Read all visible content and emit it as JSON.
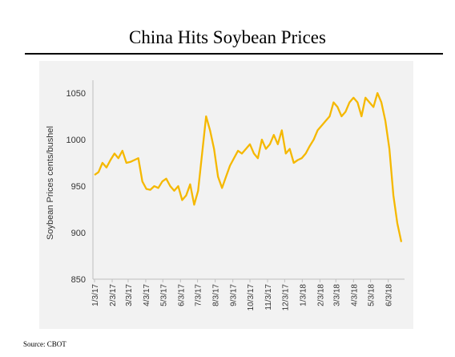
{
  "title": "China Hits Soybean Prices",
  "source": "Source: CBOT",
  "colors": {
    "line": "#f5b800",
    "plot_background": "#f2f2f2",
    "axis": "#bfbfbf"
  },
  "chart_data": {
    "type": "line",
    "title": "China Hits Soybean Prices",
    "xlabel": "",
    "ylabel": "Soybean Prices cents/bushel",
    "ylim": [
      850,
      1070
    ],
    "y_ticks": [
      850,
      900,
      950,
      1000,
      1050
    ],
    "x_tick_labels": [
      "1/3/17",
      "2/3/17",
      "3/3/17",
      "4/3/17",
      "5/3/17",
      "6/3/17",
      "7/3/17",
      "8/3/17",
      "9/3/17",
      "10/3/17",
      "11/3/17",
      "12/3/17",
      "1/3/18",
      "2/3/18",
      "3/3/18",
      "4/3/18",
      "5/3/18",
      "6/3/18"
    ],
    "grid": false,
    "legend": "none",
    "series": [
      {
        "x": [
          "1/3/17",
          "1/10/17",
          "1/17/17",
          "1/24/17",
          "1/31/17",
          "2/7/17",
          "2/14/17",
          "2/21/17",
          "2/28/17",
          "3/7/17",
          "3/14/17",
          "3/21/17",
          "3/28/17",
          "4/4/17",
          "4/11/17",
          "4/18/17",
          "4/25/17",
          "5/2/17",
          "5/9/17",
          "5/16/17",
          "5/23/17",
          "5/30/17",
          "6/6/17",
          "6/13/17",
          "6/20/17",
          "6/27/17",
          "7/4/17",
          "7/11/17",
          "7/18/17",
          "7/25/17",
          "8/1/17",
          "8/8/17",
          "8/15/17",
          "8/22/17",
          "8/29/17",
          "9/5/17",
          "9/12/17",
          "9/19/17",
          "9/26/17",
          "10/3/17",
          "10/10/17",
          "10/17/17",
          "10/24/17",
          "10/31/17",
          "11/7/17",
          "11/14/17",
          "11/21/17",
          "11/28/17",
          "12/5/17",
          "12/12/17",
          "12/19/17",
          "12/26/17",
          "1/2/18",
          "1/9/18",
          "1/16/18",
          "1/23/18",
          "1/30/18",
          "2/6/18",
          "2/13/18",
          "2/20/18",
          "2/27/18",
          "3/6/18",
          "3/13/18",
          "3/20/18",
          "3/27/18",
          "4/3/18",
          "4/10/18",
          "4/17/18",
          "4/24/18",
          "5/1/18",
          "5/8/18",
          "5/15/18",
          "5/22/18",
          "5/29/18",
          "6/5/18",
          "6/12/18",
          "6/19/18",
          "6/26/18"
        ],
        "values": [
          962,
          965,
          975,
          970,
          978,
          985,
          980,
          988,
          975,
          976,
          978,
          980,
          955,
          947,
          946,
          950,
          948,
          955,
          958,
          950,
          945,
          950,
          935,
          940,
          952,
          930,
          945,
          985,
          1025,
          1010,
          990,
          960,
          948,
          960,
          972,
          980,
          988,
          985,
          990,
          995,
          985,
          980,
          1000,
          990,
          995,
          1005,
          995,
          1010,
          985,
          990,
          975,
          978,
          980,
          985,
          993,
          1000,
          1010,
          1015,
          1020,
          1025,
          1040,
          1035,
          1025,
          1030,
          1040,
          1045,
          1040,
          1025,
          1045,
          1040,
          1035,
          1050,
          1040,
          1020,
          990,
          940,
          910,
          890
        ]
      }
    ]
  }
}
